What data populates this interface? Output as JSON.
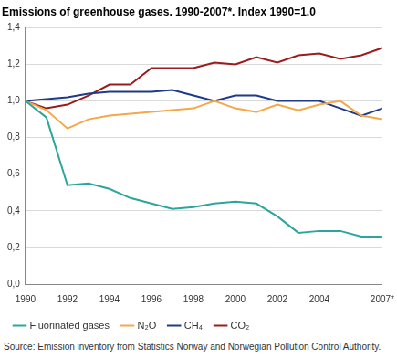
{
  "chart_data": {
    "type": "line",
    "title": "Emissions of greenhouse gases. 1990-2007*. Index 1990=1.0",
    "categories": [
      "1990",
      null,
      "1992",
      null,
      "1994",
      null,
      "1996",
      null,
      "1998",
      null,
      "2000",
      null,
      "2002",
      null,
      "2004",
      null,
      null,
      "2007*"
    ],
    "series": [
      {
        "name": "Fluorinated gases",
        "color": "#2ca59d",
        "values": [
          1.0,
          0.91,
          0.54,
          0.55,
          0.52,
          0.47,
          0.44,
          0.41,
          0.42,
          0.44,
          0.45,
          0.44,
          0.37,
          0.28,
          0.29,
          0.29,
          0.26,
          0.26
        ]
      },
      {
        "name": "N₂O",
        "color": "#f5a84a",
        "values": [
          1.0,
          0.95,
          0.85,
          0.9,
          0.92,
          0.93,
          0.94,
          0.95,
          0.96,
          1.0,
          0.96,
          0.94,
          0.98,
          0.95,
          0.98,
          1.0,
          0.92,
          0.9
        ]
      },
      {
        "name": "CH₄",
        "color": "#1f3a8a",
        "values": [
          1.0,
          1.01,
          1.02,
          1.04,
          1.05,
          1.05,
          1.05,
          1.06,
          1.03,
          1.0,
          1.03,
          1.03,
          1.0,
          1.0,
          1.0,
          0.96,
          0.92,
          0.96
        ]
      },
      {
        "name": "CO₂",
        "color": "#9a1c1c",
        "values": [
          1.0,
          0.96,
          0.98,
          1.03,
          1.09,
          1.09,
          1.18,
          1.18,
          1.18,
          1.21,
          1.2,
          1.24,
          1.21,
          1.25,
          1.26,
          1.23,
          1.25,
          1.29
        ]
      }
    ],
    "ylim": [
      0,
      1.4
    ],
    "yticks": [
      {
        "value": 0,
        "label": "0,0"
      },
      {
        "value": 0.2,
        "label": "0,2"
      },
      {
        "value": 0.4,
        "label": "0,4"
      },
      {
        "value": 0.6,
        "label": "0,6"
      },
      {
        "value": 0.8,
        "label": "0,8"
      },
      {
        "value": 1.0,
        "label": "1,0"
      },
      {
        "value": 1.2,
        "label": "1,2"
      },
      {
        "value": 1.4,
        "label": "1,4"
      }
    ],
    "grid": true,
    "legend": "bottom",
    "annotations": [
      "Source: Emission inventory from Statistics Norway and Norwegian Pollution Control Authority."
    ]
  }
}
